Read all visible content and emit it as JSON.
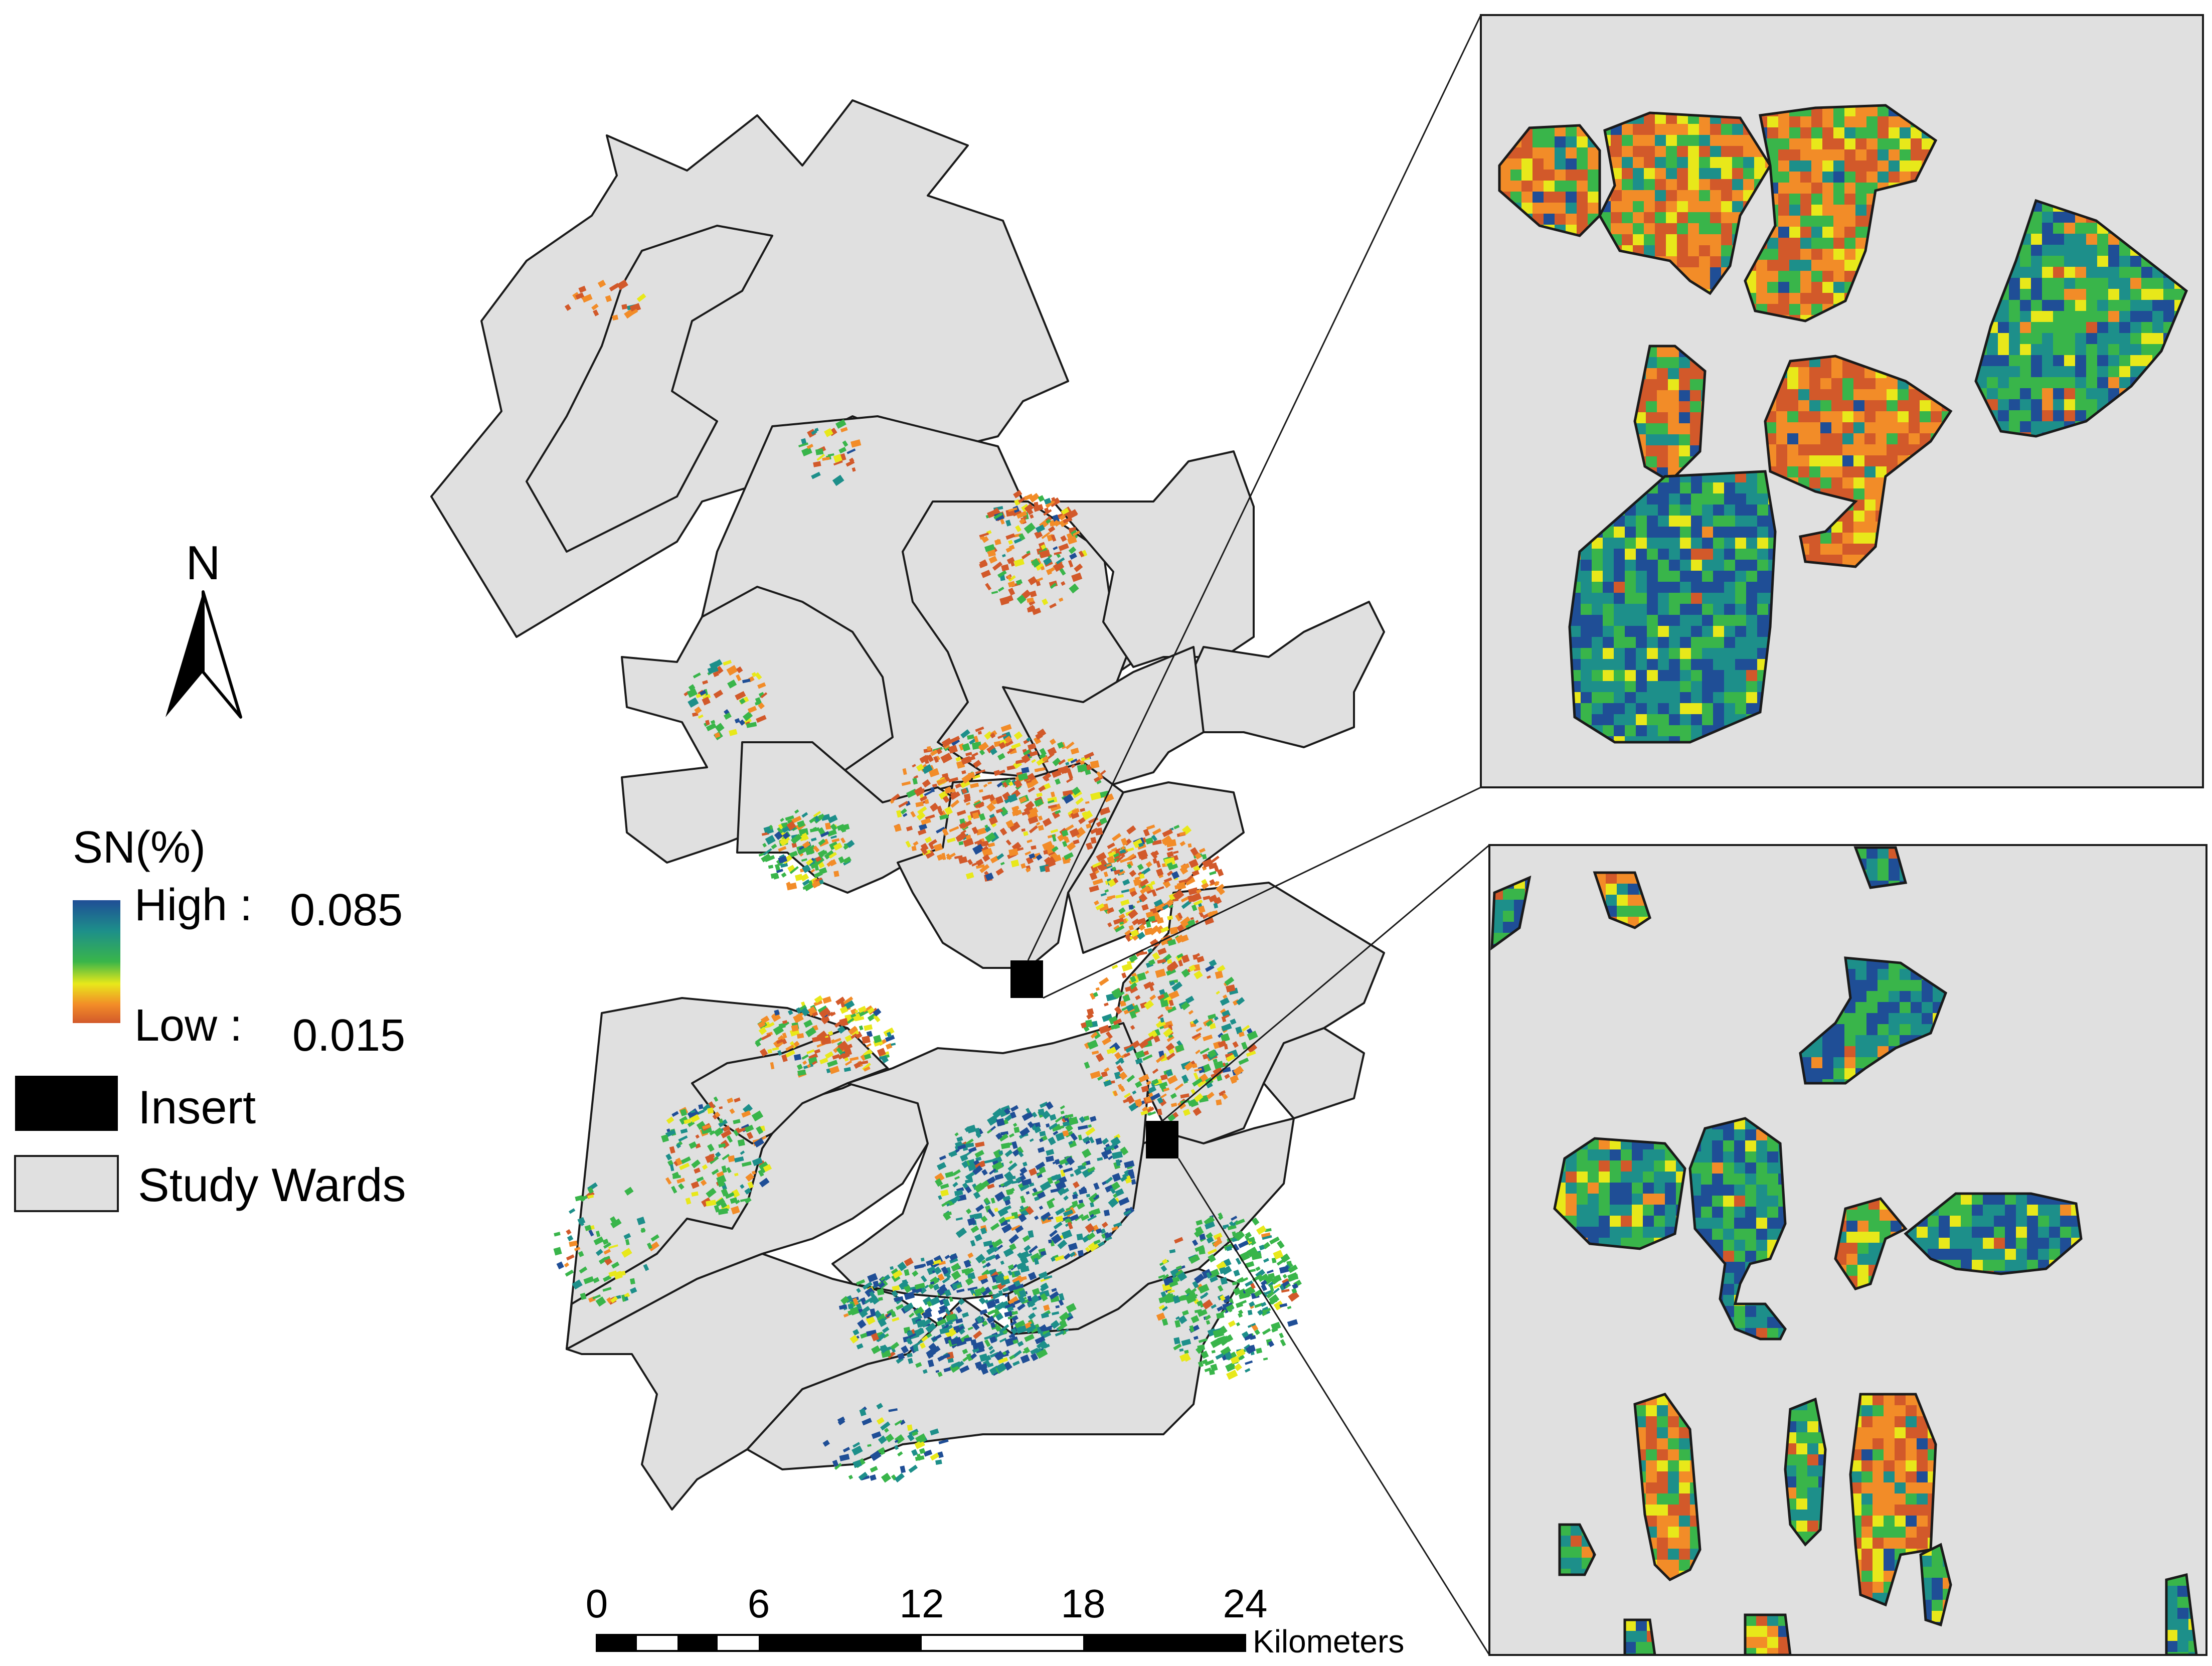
{
  "north_arrow": {
    "label": "N"
  },
  "legend": {
    "title": "SN(%)",
    "high_label": "High :",
    "high_value": "0.085",
    "low_label": "Low :",
    "low_value": "0.015",
    "gradient_colors": [
      "#1f4e96",
      "#1d8f8a",
      "#39b54a",
      "#e8e81a",
      "#f28c28",
      "#d2592a"
    ],
    "insert_label": "Insert",
    "study_wards_label": "Study Wards",
    "study_wards_color": "#e0e0e0"
  },
  "scale_bar": {
    "ticks": [
      "0",
      "6",
      "12",
      "18",
      "24"
    ],
    "unit_label": "Kilometers"
  },
  "colors": {
    "ward_fill": "#e0e0e0",
    "ward_stroke": "#1a1a1a",
    "high": "#1f4e96",
    "mid_high": "#1d8f8a",
    "mid": "#39b54a",
    "mid_low": "#e8e81a",
    "low_mid": "#f28c28",
    "low": "#d2592a"
  }
}
